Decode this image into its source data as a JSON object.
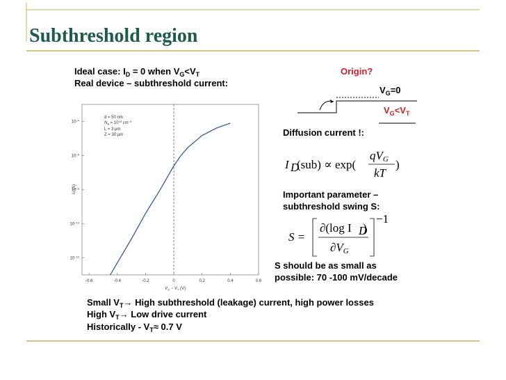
{
  "title": "Subthreshold region",
  "left_text": [
    [
      "Ideal case",
      ": I",
      "D",
      " = 0 when V",
      "G",
      "<V",
      "T"
    ],
    [
      "Real device – subthreshold current",
      ":"
    ]
  ],
  "plot": {
    "type": "line",
    "xlabel": [
      "V",
      "G",
      " − V",
      "T",
      " (V)"
    ],
    "ylabel": [
      "I",
      "D",
      " (A)"
    ],
    "xlim": [
      -0.65,
      0.6
    ],
    "ylim": [
      1e-13,
      0.001
    ],
    "log_y": true,
    "xticks": [
      -0.6,
      -0.4,
      -0.2,
      0,
      0.2,
      0.4,
      0.6
    ],
    "yticks": [
      {
        "value": 0.0001,
        "label": "10",
        "power": "−4"
      },
      {
        "value": 1e-06,
        "label": "10",
        "power": "−6"
      },
      {
        "value": 1e-08,
        "label": "10",
        "power": "−8"
      },
      {
        "value": 1e-10,
        "label": "10",
        "power": "−10"
      },
      {
        "value": 1e-12,
        "label": "10",
        "power": "−12"
      }
    ],
    "x": [
      -0.45,
      -0.3,
      -0.2,
      -0.1,
      0,
      0.05,
      0.1,
      0.2,
      0.3,
      0.4
    ],
    "values": [
      1e-13,
      1.3e-11,
      4e-10,
      9e-09,
      2.5e-07,
      1e-06,
      3e-06,
      1.5e-05,
      4e-05,
      8e-05
    ],
    "color": "#2a4f8f",
    "annotations": [
      "d = 50 nm",
      "N",
      "A",
      " = 10",
      "18",
      " cm",
      "−3",
      "L = 3 µm",
      "Z = 30 µm"
    ]
  },
  "origin": {
    "label": "Origin?",
    "vg0": [
      "V",
      "G",
      "=0"
    ],
    "vglt": [
      "V",
      "G",
      "<V",
      "T"
    ]
  },
  "diffusion": "Diffusion current !:",
  "formula1": {
    "I": "I",
    "D": "D",
    "mid": "(sub) ∝ exp(",
    "num": "qV",
    "numsub": "G",
    "den": "kT",
    "close": ")"
  },
  "swing": [
    "Important parameter –",
    "subthreshold swing ",
    "S",
    ":"
  ],
  "formula2": {
    "lhs": "S =",
    "num": "∂(log I",
    "numsub": "D",
    "numclose": ")",
    "den": "∂V",
    "densub": "G",
    "power": "−1"
  },
  "note": [
    "S should be as small as",
    "possible: 70 -100 mV/decade"
  ],
  "bottom": [
    [
      "Small V",
      "T",
      "→ High subthreshold (leakage) current, high power losses"
    ],
    [
      "High V",
      "T",
      "→ Low drive current"
    ],
    [
      "Historically - V",
      "T",
      "≈ 0.7 V"
    ]
  ]
}
